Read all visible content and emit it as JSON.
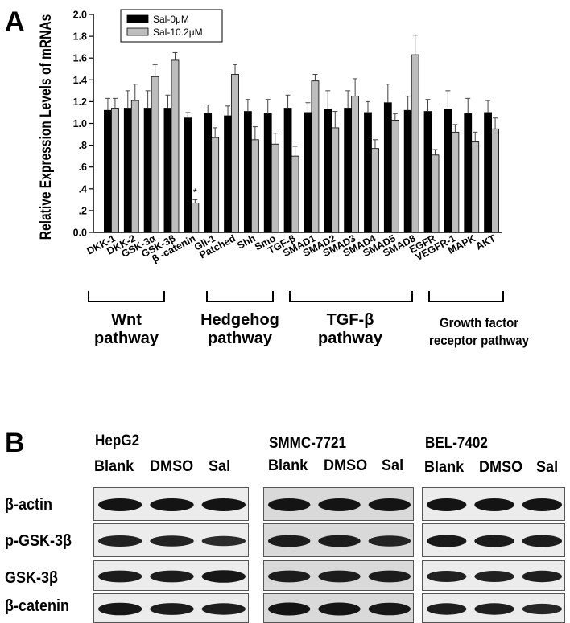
{
  "panel_a": {
    "letter": "A",
    "pathways": {
      "wnt": [
        "Wnt",
        "pathway"
      ],
      "hedgehog": [
        "Hedgehog",
        "pathway"
      ],
      "tgfb": [
        "TGF-β",
        "pathway"
      ],
      "growth": [
        "Growth factor",
        "receptor pathway"
      ]
    }
  },
  "chart_data": {
    "type": "bar",
    "ylabel": "Relative Expression Levels of mRNAs",
    "xlabel": "",
    "ylim": [
      0,
      2.0
    ],
    "yticks": [
      "0.0",
      ".2",
      ".4",
      ".6",
      ".8",
      "1.0",
      "1.2",
      "1.4",
      "1.6",
      "1.8",
      "2.0"
    ],
    "categories": [
      "DKK-1",
      "DKK-2",
      "GSK-3α",
      "GSK-3β",
      "β -catenin",
      "Gli-1",
      "Patched",
      "Shh",
      "Smo",
      "TGF-β",
      "SMAD1",
      "SMAD2",
      "SMAD3",
      "SMAD4",
      "SMAD5",
      "SMAD8",
      "EGFR",
      "VEGFR-1",
      "MAPK",
      "AKT"
    ],
    "series": [
      {
        "name": "Sal-0μM",
        "color": "#000000",
        "values": [
          1.12,
          1.14,
          1.14,
          1.14,
          1.05,
          1.09,
          1.07,
          1.11,
          1.09,
          1.14,
          1.1,
          1.13,
          1.14,
          1.1,
          1.19,
          1.12,
          1.11,
          1.13,
          1.09,
          1.1
        ],
        "errors": [
          0.11,
          0.16,
          0.16,
          0.12,
          0.05,
          0.08,
          0.09,
          0.11,
          0.13,
          0.12,
          0.09,
          0.17,
          0.16,
          0.1,
          0.17,
          0.13,
          0.11,
          0.17,
          0.14,
          0.11
        ]
      },
      {
        "name": "Sal-10.2μM",
        "color": "#bdbdbd",
        "values": [
          1.14,
          1.21,
          1.43,
          1.58,
          0.27,
          0.87,
          1.45,
          0.85,
          0.81,
          0.7,
          1.39,
          0.96,
          1.25,
          0.77,
          1.03,
          1.63,
          0.71,
          0.92,
          0.83,
          0.95
        ],
        "errors": [
          0.09,
          0.15,
          0.11,
          0.07,
          0.03,
          0.09,
          0.09,
          0.12,
          0.1,
          0.09,
          0.06,
          0.15,
          0.16,
          0.08,
          0.06,
          0.18,
          0.05,
          0.07,
          0.09,
          0.1
        ]
      }
    ],
    "annotations": [
      {
        "category": "β -catenin",
        "text": "*"
      }
    ],
    "legend_position": "top-left"
  },
  "panel_b": {
    "letter": "B",
    "cell_lines": [
      "HepG2",
      "SMMC-7721",
      "BEL-7402"
    ],
    "lanes": [
      "Blank",
      "DMSO",
      "Sal"
    ],
    "proteins": [
      "β-actin",
      "p-GSK-3β",
      "GSK-3β",
      "β-catenin"
    ],
    "band_intensity": {
      "HepG2": [
        [
          1.0,
          1.0,
          1.0
        ],
        [
          0.75,
          0.7,
          0.55
        ],
        [
          0.85,
          0.85,
          0.95
        ],
        [
          0.95,
          0.85,
          0.8
        ]
      ],
      "SMMC-7721": [
        [
          1.0,
          1.0,
          1.0
        ],
        [
          0.85,
          0.85,
          0.7
        ],
        [
          0.85,
          0.85,
          0.85
        ],
        [
          1.0,
          1.0,
          0.95
        ]
      ],
      "BEL-7402": [
        [
          1.0,
          1.0,
          1.0
        ],
        [
          0.9,
          0.85,
          0.85
        ],
        [
          0.75,
          0.75,
          0.8
        ],
        [
          0.8,
          0.8,
          0.65
        ]
      ]
    }
  }
}
